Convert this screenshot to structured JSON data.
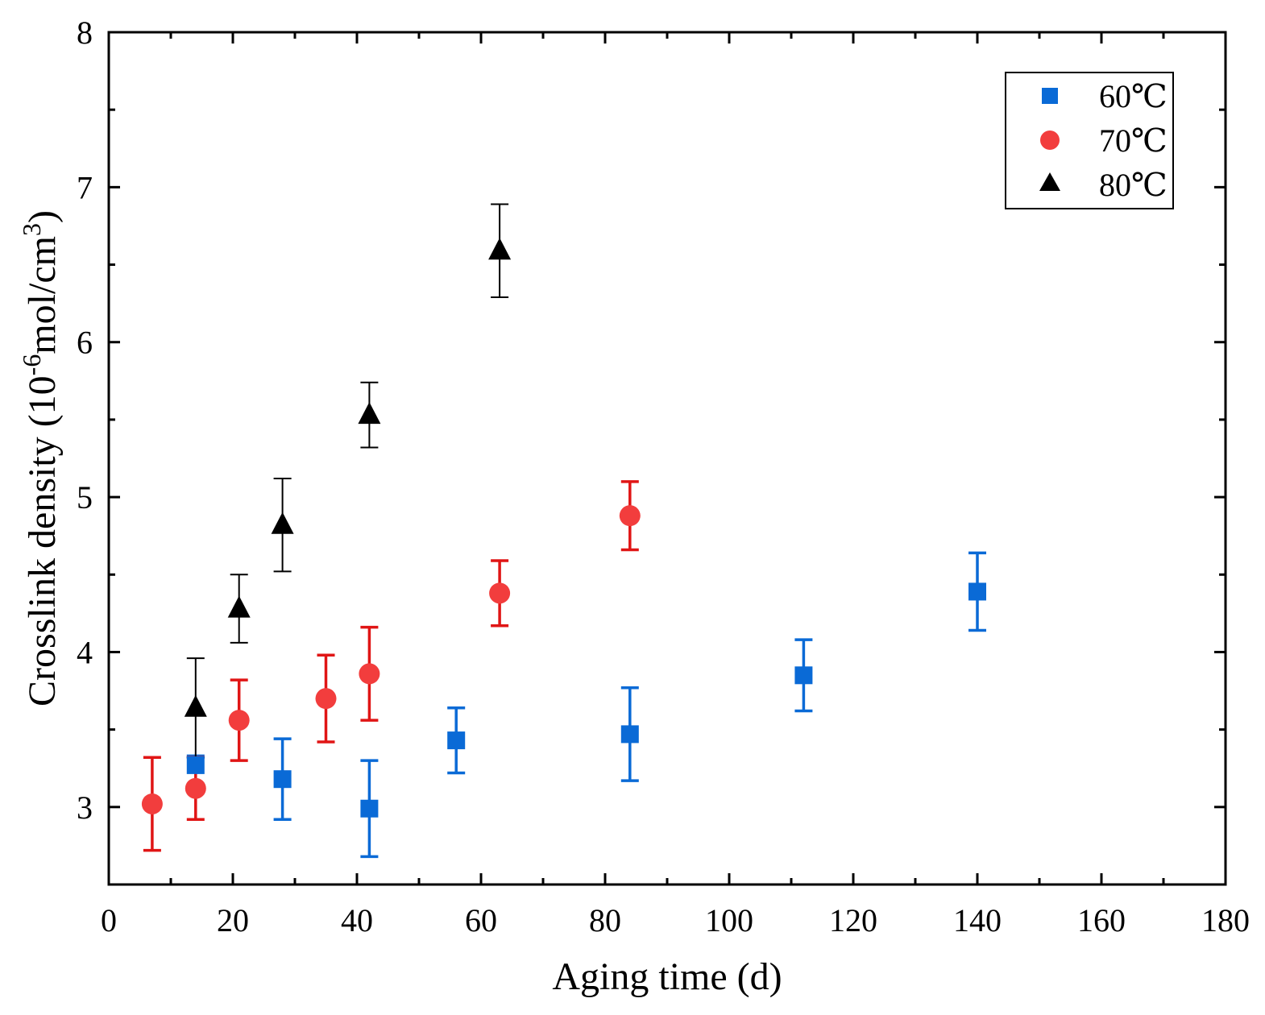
{
  "chart_data": {
    "type": "scatter",
    "title": "",
    "xlabel": "Aging time (d)",
    "ylabel_parts": {
      "main": "Crosslink density (10",
      "exp1": "-6",
      "unit": "mol/cm",
      "exp2": "3",
      "close": ")"
    },
    "xlim": [
      0,
      180
    ],
    "ylim": [
      2.5,
      8
    ],
    "xticks": [
      0,
      20,
      40,
      60,
      80,
      100,
      120,
      140,
      160,
      180
    ],
    "xtick_labels": [
      "0",
      "20",
      "40",
      "60",
      "80",
      "100",
      "120",
      "140",
      "160",
      "180"
    ],
    "yticks": [
      3,
      4,
      5,
      6,
      7,
      8
    ],
    "ytick_labels": [
      "3",
      "4",
      "5",
      "6",
      "7",
      "8"
    ],
    "legend_position": "top-right",
    "grid": false,
    "series": [
      {
        "name": "60℃",
        "marker": "square",
        "color": "#0a6ad6",
        "x": [
          14,
          28,
          42,
          56,
          84,
          112,
          140
        ],
        "y": [
          3.27,
          3.18,
          2.99,
          3.43,
          3.47,
          3.85,
          4.39
        ],
        "err_lo": [
          0.0,
          0.26,
          0.31,
          0.21,
          0.3,
          0.23,
          0.25
        ],
        "err_hi": [
          0.06,
          0.26,
          0.31,
          0.21,
          0.3,
          0.23,
          0.25
        ]
      },
      {
        "name": "70℃",
        "marker": "circle",
        "color": "#f23d3d",
        "err_color": "#e01515",
        "x": [
          7,
          14,
          21,
          35,
          42,
          63,
          84
        ],
        "y": [
          3.02,
          3.12,
          3.56,
          3.7,
          3.86,
          4.38,
          4.88
        ],
        "err_lo": [
          0.3,
          0.2,
          0.26,
          0.28,
          0.3,
          0.21,
          0.22
        ],
        "err_hi": [
          0.3,
          0.2,
          0.26,
          0.28,
          0.3,
          0.21,
          0.22
        ]
      },
      {
        "name": "80℃",
        "marker": "triangle",
        "color": "#000000",
        "x": [
          14,
          21,
          28,
          42,
          63
        ],
        "y": [
          3.64,
          4.28,
          4.82,
          5.53,
          6.59
        ],
        "err_lo": [
          0.32,
          0.22,
          0.3,
          0.21,
          0.3
        ],
        "err_hi": [
          0.32,
          0.22,
          0.3,
          0.21,
          0.3
        ]
      }
    ]
  }
}
